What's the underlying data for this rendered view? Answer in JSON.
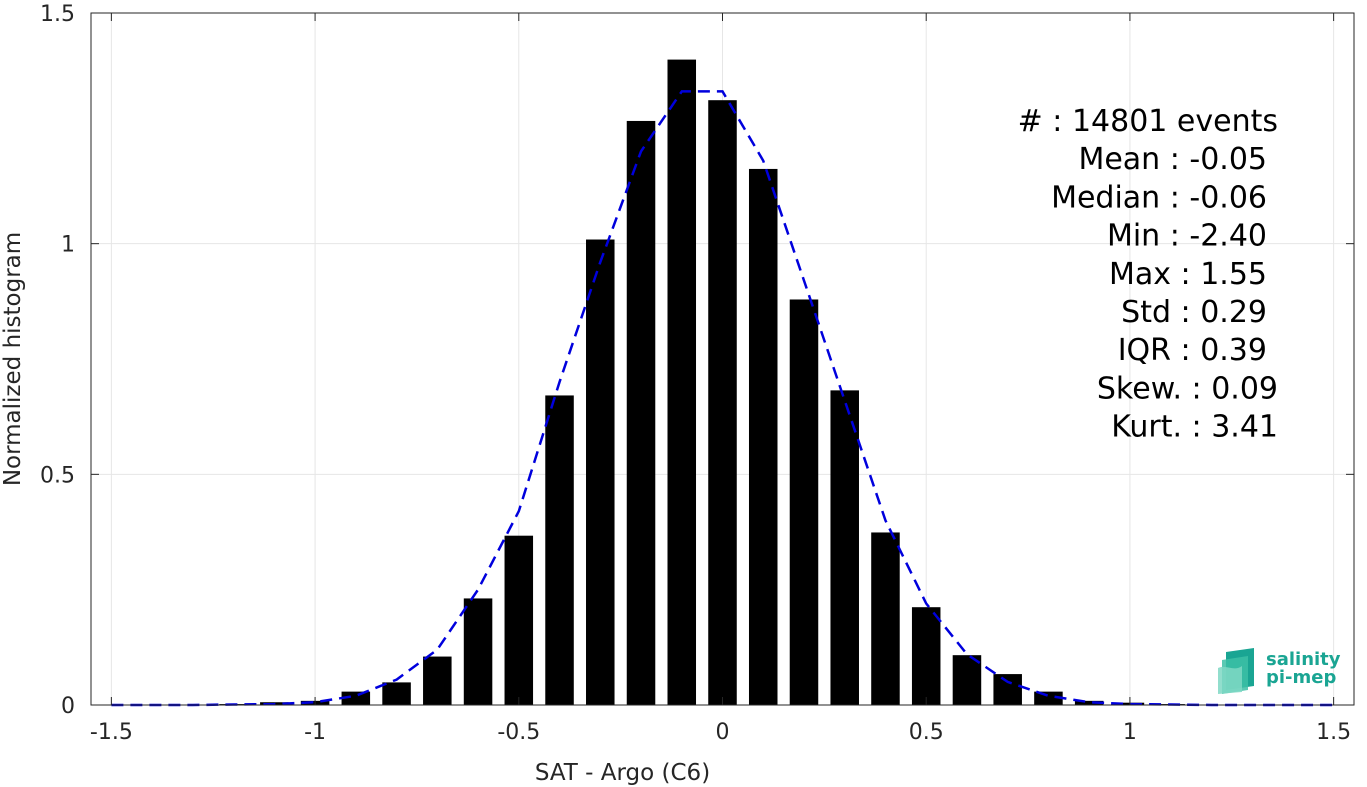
{
  "chart_data": {
    "type": "bar",
    "xlabel": "SAT - Argo (C6)",
    "ylabel": "Normalized histogram",
    "xlim": [
      -1.55,
      1.55
    ],
    "ylim": [
      0,
      1.5
    ],
    "xticks": [
      -1.5,
      -1,
      -0.5,
      0,
      0.5,
      1,
      1.5
    ],
    "xtick_labels": [
      "-1.5",
      "-1",
      "-0.5",
      "0",
      "0.5",
      "1",
      "1.5"
    ],
    "yticks": [
      0,
      0.5,
      1,
      1.5
    ],
    "ytick_labels": [
      "0",
      "0.5",
      "1",
      "1.5"
    ],
    "grid": true,
    "bar_color": "#000000",
    "bar_width": 0.07,
    "bars": {
      "x": [
        -1.5,
        -1.4,
        -1.3,
        -1.2,
        -1.1,
        -1.0,
        -0.9,
        -0.8,
        -0.7,
        -0.6,
        -0.5,
        -0.4,
        -0.3,
        -0.2,
        -0.1,
        0.0,
        0.1,
        0.2,
        0.3,
        0.4,
        0.5,
        0.6,
        0.7,
        0.8,
        0.9,
        1.0,
        1.1,
        1.2,
        1.3,
        1.4,
        1.5
      ],
      "values": [
        0.001,
        0.001,
        0.001,
        0.002,
        0.006,
        0.009,
        0.029,
        0.049,
        0.105,
        0.231,
        0.367,
        0.671,
        1.009,
        1.266,
        1.399,
        1.311,
        1.162,
        0.879,
        0.682,
        0.374,
        0.212,
        0.108,
        0.067,
        0.029,
        0.009,
        0.005,
        0.002,
        0.001,
        0.001,
        0.001,
        0.001
      ]
    },
    "fit_curve": {
      "style": "dashed",
      "color": "#0000dd",
      "x": [
        -1.5,
        -1.4,
        -1.3,
        -1.2,
        -1.1,
        -1.0,
        -0.9,
        -0.8,
        -0.7,
        -0.6,
        -0.5,
        -0.4,
        -0.3,
        -0.2,
        -0.1,
        0.0,
        0.1,
        0.2,
        0.3,
        0.4,
        0.5,
        0.6,
        0.7,
        0.8,
        0.9,
        1.0,
        1.1,
        1.2,
        1.3,
        1.4,
        1.5
      ],
      "values": [
        0.0,
        0.0,
        0.0,
        0.001,
        0.002,
        0.006,
        0.02,
        0.055,
        0.12,
        0.25,
        0.42,
        0.7,
        0.96,
        1.2,
        1.33,
        1.33,
        1.18,
        0.92,
        0.66,
        0.4,
        0.22,
        0.11,
        0.05,
        0.02,
        0.006,
        0.002,
        0.001,
        0.0,
        0.0,
        0.0,
        0.0
      ]
    },
    "annotations": [
      "#  : 14801 events",
      "Mean : -0.05",
      "Median : -0.06",
      "Min : -2.40",
      "Max : 1.55",
      "Std : 0.29",
      "IQR : 0.39",
      "Skew. : 0.09",
      "Kurt. : 3.41"
    ]
  },
  "logo": {
    "line1": "salinity",
    "line2": "pi-mep",
    "color": "#1aa593"
  }
}
